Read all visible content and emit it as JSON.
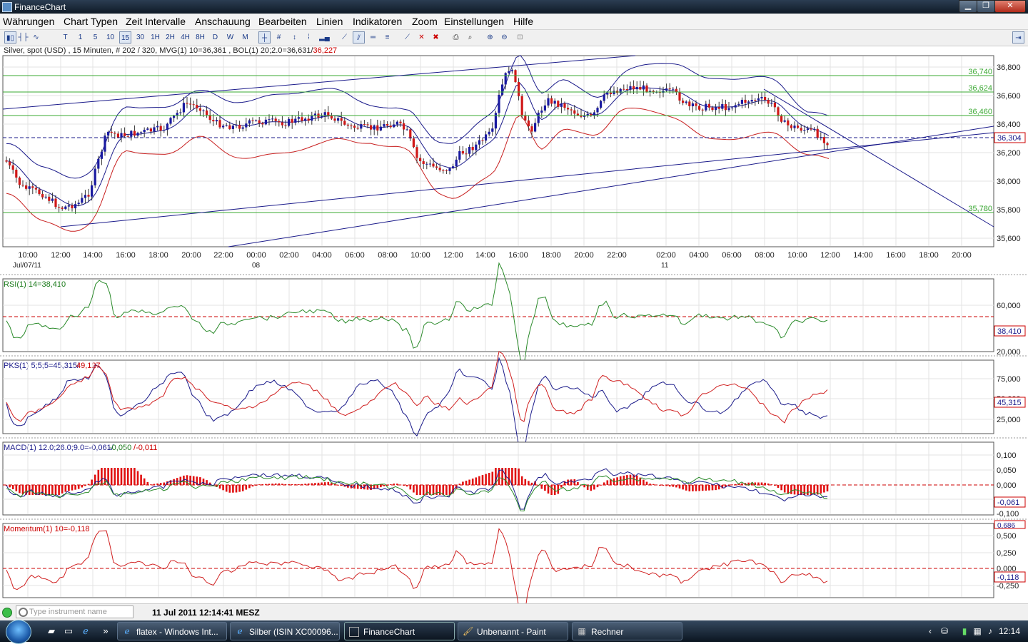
{
  "window": {
    "title": "FinanceChart"
  },
  "menu": [
    "Währungen",
    "Chart Typen",
    "Zeit Intervalle",
    "Anschauung",
    "Bearbeiten",
    "Linien",
    "Indikatoren",
    "Zoom",
    "Einstellungen",
    "Hilfe"
  ],
  "toolbar": {
    "intervals": [
      "T",
      "1",
      "5",
      "10",
      "15",
      "30",
      "1H",
      "2H",
      "4H",
      "8H",
      "D",
      "W",
      "M"
    ],
    "selected_interval": "15"
  },
  "main_chart": {
    "info": "Silver, spot (USD) , 15 Minuten, # 202 / 320, MVG(1) 10=36,361 , BOL(1) 20;2.0=36,631/",
    "info_red": "36,227",
    "y_ticks": [
      "36,800",
      "36,600",
      "36,400",
      "36,200",
      "36,000",
      "35,800",
      "35,600"
    ],
    "h_levels": [
      "36,740",
      "36,624",
      "36,460",
      "35,780"
    ],
    "current_price": "36,304",
    "x_ticks": [
      "10:00",
      "12:00",
      "14:00",
      "16:00",
      "18:00",
      "20:00",
      "22:00",
      "00:00",
      "02:00",
      "04:00",
      "06:00",
      "08:00",
      "10:00",
      "12:00",
      "14:00",
      "16:00",
      "18:00",
      "20:00",
      "22:00",
      "02:00",
      "04:00",
      "06:00",
      "08:00",
      "10:00",
      "12:00",
      "14:00",
      "16:00",
      "18:00",
      "20:00"
    ],
    "date_labels": [
      "Jul/07/11",
      "08",
      "11"
    ]
  },
  "rsi": {
    "label": "RSI(1) 14=38,410",
    "ticks": [
      "60,000",
      "20,000"
    ],
    "current": "38,410"
  },
  "pks": {
    "label": "PKS(1) 5;5;5=45,315/",
    "label_red": "49,127",
    "ticks": [
      "75,000",
      "50,000",
      "25,000"
    ],
    "current": "45,315"
  },
  "macd": {
    "label": "MACD(1) 12.0;26.0;9.0=-0,061/",
    "label_green": "-0,050",
    "label_red": "/-0,011",
    "ticks": [
      "0,100",
      "0,050",
      "0,000",
      "-0,050",
      "-0,100"
    ],
    "current": "-0,061"
  },
  "momentum": {
    "label": "Momentum(1) 10=-0,118",
    "ticks": [
      "0,500",
      "0,250",
      "0,000",
      "-0,250"
    ],
    "top_tick": "0,686",
    "current": "-0,118"
  },
  "status": {
    "search_placeholder": "Type instrument name",
    "datetime": "11 Jul 2011 12:14:41 MESZ"
  },
  "taskbar": {
    "tasks": [
      {
        "label": "flatex - Windows Int..."
      },
      {
        "label": "Silber (ISIN XC00096..."
      },
      {
        "label": "FinanceChart"
      },
      {
        "label": "Unbenannt - Paint"
      },
      {
        "label": "Rechner"
      }
    ],
    "clock": "12:14"
  }
}
